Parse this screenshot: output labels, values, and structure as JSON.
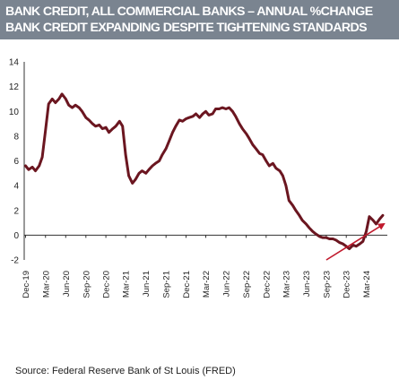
{
  "title": {
    "line1": "BANK CREDIT, ALL COMMERCIAL BANKS – ANNUAL %CHANGE",
    "line2": "BANK CREDIT EXPANDING DESPITE TIGHTENING STANDARDS"
  },
  "source": "Source: Federal Reserve Bank of St Louis (FRED)",
  "colors": {
    "banner": "#7a8490",
    "line": "#6b1620",
    "arrow": "#c0192c",
    "axis": "#333333"
  },
  "chart_data": {
    "type": "line",
    "title": "BANK CREDIT, ALL COMMERCIAL BANKS – ANNUAL %CHANGE",
    "xlabel": "",
    "ylabel": "",
    "ylim": [
      -2,
      14
    ],
    "yticks": [
      "-2",
      "0",
      "2",
      "4",
      "6",
      "8",
      "10",
      "12",
      "14"
    ],
    "xticks": [
      "Dec-19",
      "Mar-20",
      "Jun-20",
      "Sep-20",
      "Dec-20",
      "Mar-21",
      "Jun-21",
      "Sep-21",
      "Dec-21",
      "Mar-22",
      "Jun-22",
      "Sep-22",
      "Dec-22",
      "Mar-23",
      "Jun-23",
      "Sep-23",
      "Dec-23",
      "Mar-24"
    ],
    "grid": false,
    "annotations": [
      "upward trend arrow (late 2023 – mid 2024)"
    ],
    "series": [
      {
        "points": [
          [
            "2019-12-01",
            5.6
          ],
          [
            "2019-12-15",
            5.3
          ],
          [
            "2020-01-01",
            5.5
          ],
          [
            "2020-01-15",
            5.2
          ],
          [
            "2020-02-01",
            5.6
          ],
          [
            "2020-02-15",
            6.3
          ],
          [
            "2020-03-01",
            8.5
          ],
          [
            "2020-03-15",
            10.6
          ],
          [
            "2020-04-01",
            11.0
          ],
          [
            "2020-04-15",
            10.7
          ],
          [
            "2020-05-01",
            11.0
          ],
          [
            "2020-05-15",
            11.4
          ],
          [
            "2020-06-01",
            11.0
          ],
          [
            "2020-06-15",
            10.5
          ],
          [
            "2020-07-01",
            10.3
          ],
          [
            "2020-07-15",
            10.5
          ],
          [
            "2020-08-01",
            10.3
          ],
          [
            "2020-08-15",
            10.0
          ],
          [
            "2020-09-01",
            9.5
          ],
          [
            "2020-09-15",
            9.3
          ],
          [
            "2020-10-01",
            9.0
          ],
          [
            "2020-10-15",
            8.8
          ],
          [
            "2020-11-01",
            8.9
          ],
          [
            "2020-11-15",
            8.6
          ],
          [
            "2020-12-01",
            8.7
          ],
          [
            "2020-12-15",
            8.3
          ],
          [
            "2021-01-01",
            8.6
          ],
          [
            "2021-01-15",
            8.8
          ],
          [
            "2021-02-01",
            9.2
          ],
          [
            "2021-02-15",
            8.8
          ],
          [
            "2021-03-01",
            6.5
          ],
          [
            "2021-03-15",
            4.8
          ],
          [
            "2021-04-01",
            4.2
          ],
          [
            "2021-04-15",
            4.5
          ],
          [
            "2021-05-01",
            5.0
          ],
          [
            "2021-05-15",
            5.2
          ],
          [
            "2021-06-01",
            5.0
          ],
          [
            "2021-06-15",
            5.3
          ],
          [
            "2021-07-01",
            5.6
          ],
          [
            "2021-07-15",
            5.8
          ],
          [
            "2021-08-01",
            6.0
          ],
          [
            "2021-08-15",
            6.5
          ],
          [
            "2021-09-01",
            7.0
          ],
          [
            "2021-09-15",
            7.6
          ],
          [
            "2021-10-01",
            8.3
          ],
          [
            "2021-10-15",
            8.8
          ],
          [
            "2021-11-01",
            9.3
          ],
          [
            "2021-11-15",
            9.2
          ],
          [
            "2021-12-01",
            9.4
          ],
          [
            "2021-12-15",
            9.5
          ],
          [
            "2022-01-01",
            9.6
          ],
          [
            "2022-01-15",
            9.8
          ],
          [
            "2022-02-01",
            9.5
          ],
          [
            "2022-02-15",
            9.8
          ],
          [
            "2022-03-01",
            10.0
          ],
          [
            "2022-03-15",
            9.7
          ],
          [
            "2022-04-01",
            9.8
          ],
          [
            "2022-04-15",
            10.2
          ],
          [
            "2022-05-01",
            10.2
          ],
          [
            "2022-05-15",
            10.3
          ],
          [
            "2022-06-01",
            10.2
          ],
          [
            "2022-06-15",
            10.3
          ],
          [
            "2022-07-01",
            10.0
          ],
          [
            "2022-07-15",
            9.6
          ],
          [
            "2022-08-01",
            9.0
          ],
          [
            "2022-08-15",
            8.6
          ],
          [
            "2022-09-01",
            8.2
          ],
          [
            "2022-09-15",
            7.8
          ],
          [
            "2022-10-01",
            7.3
          ],
          [
            "2022-10-15",
            7.0
          ],
          [
            "2022-11-01",
            6.6
          ],
          [
            "2022-11-15",
            6.5
          ],
          [
            "2022-12-01",
            6.0
          ],
          [
            "2022-12-15",
            5.6
          ],
          [
            "2023-01-01",
            5.8
          ],
          [
            "2023-01-15",
            5.4
          ],
          [
            "2023-02-01",
            5.2
          ],
          [
            "2023-02-15",
            4.8
          ],
          [
            "2023-03-01",
            4.0
          ],
          [
            "2023-03-15",
            2.8
          ],
          [
            "2023-04-01",
            2.4
          ],
          [
            "2023-04-15",
            2.0
          ],
          [
            "2023-05-01",
            1.6
          ],
          [
            "2023-05-15",
            1.2
          ],
          [
            "2023-06-01",
            0.9
          ],
          [
            "2023-06-15",
            0.6
          ],
          [
            "2023-07-01",
            0.3
          ],
          [
            "2023-07-15",
            0.1
          ],
          [
            "2023-08-01",
            -0.1
          ],
          [
            "2023-08-15",
            -0.2
          ],
          [
            "2023-09-01",
            -0.2
          ],
          [
            "2023-09-15",
            -0.3
          ],
          [
            "2023-10-01",
            -0.3
          ],
          [
            "2023-10-15",
            -0.4
          ],
          [
            "2023-11-01",
            -0.6
          ],
          [
            "2023-11-15",
            -0.7
          ],
          [
            "2023-12-01",
            -0.9
          ],
          [
            "2023-12-15",
            -1.1
          ],
          [
            "2024-01-01",
            -0.8
          ],
          [
            "2024-01-15",
            -0.9
          ],
          [
            "2024-02-01",
            -0.7
          ],
          [
            "2024-02-15",
            -0.5
          ],
          [
            "2024-03-01",
            0.3
          ],
          [
            "2024-03-15",
            1.5
          ],
          [
            "2024-04-01",
            1.2
          ],
          [
            "2024-04-15",
            0.9
          ],
          [
            "2024-05-01",
            1.3
          ],
          [
            "2024-05-15",
            1.6
          ]
        ]
      }
    ],
    "trend_arrow": {
      "from": [
        "2023-09-01",
        -2.0
      ],
      "to": [
        "2024-05-20",
        0.9
      ]
    }
  }
}
